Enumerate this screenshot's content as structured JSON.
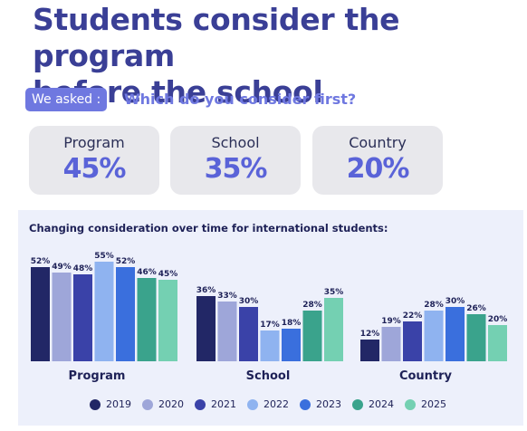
{
  "headline": {
    "line1": "Students consider the program",
    "line2": "before the school"
  },
  "survey": {
    "badge": "We asked :",
    "question": "Which do you consider first?"
  },
  "stats": [
    {
      "label": "Program",
      "value": "45%"
    },
    {
      "label": "School",
      "value": "35%"
    },
    {
      "label": "Country",
      "value": "20%"
    }
  ],
  "chart_data": {
    "type": "bar",
    "title": "Changing consideration over time for international students:",
    "categories": [
      "Program",
      "School",
      "Country"
    ],
    "series": [
      {
        "name": "2019",
        "color": "#222766",
        "values": [
          52,
          36,
          12
        ]
      },
      {
        "name": "2020",
        "color": "#9ea6d9",
        "values": [
          49,
          33,
          19
        ]
      },
      {
        "name": "2021",
        "color": "#3a42a8",
        "values": [
          48,
          30,
          22
        ]
      },
      {
        "name": "2022",
        "color": "#8fb3f0",
        "values": [
          55,
          17,
          28
        ]
      },
      {
        "name": "2023",
        "color": "#3a6fdd",
        "values": [
          52,
          18,
          30
        ]
      },
      {
        "name": "2024",
        "color": "#3aa38c",
        "values": [
          46,
          28,
          26
        ]
      },
      {
        "name": "2025",
        "color": "#74d0b2",
        "values": [
          45,
          35,
          20
        ]
      }
    ],
    "value_suffix": "%",
    "legend_position": "bottom",
    "grid": false
  }
}
